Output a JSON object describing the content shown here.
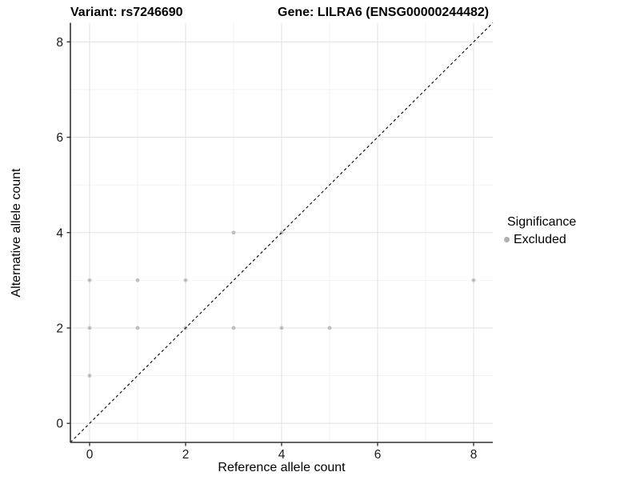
{
  "figure": {
    "title_left": "Variant: rs7246690",
    "title_right": "Gene: LILRA6 (ENSG00000244482)"
  },
  "chart_data": {
    "type": "scatter",
    "title_left": "Variant: rs7246690",
    "title_right": "Gene: LILRA6 (ENSG00000244482)",
    "xlabel": "Reference allele count",
    "ylabel": "Alternative allele count",
    "xlim": [
      -0.4,
      8.4
    ],
    "ylim": [
      -0.4,
      8.4
    ],
    "xticks": [
      0,
      2,
      4,
      6,
      8
    ],
    "yticks": [
      0,
      2,
      4,
      6,
      8
    ],
    "minor_xticks": [
      1,
      3,
      5,
      7
    ],
    "minor_yticks": [
      1,
      3,
      5,
      7
    ],
    "grid": true,
    "legend_position": "right",
    "identity_line": {
      "style": "dashed",
      "color": "#000000",
      "from": [
        -0.4,
        -0.4
      ],
      "to": [
        8.4,
        8.4
      ]
    },
    "series": [
      {
        "name": "Excluded",
        "color": "#bebebe",
        "points": [
          [
            0,
            1
          ],
          [
            0,
            2
          ],
          [
            0,
            3
          ],
          [
            1,
            2
          ],
          [
            1,
            3
          ],
          [
            2,
            2
          ],
          [
            2,
            3
          ],
          [
            3,
            2
          ],
          [
            3,
            4
          ],
          [
            4,
            2
          ],
          [
            4,
            4
          ],
          [
            5,
            2
          ],
          [
            8,
            3
          ]
        ]
      }
    ],
    "legend": {
      "title": "Significance",
      "items": [
        {
          "label": "Excluded",
          "color": "#b0b0b0"
        }
      ]
    },
    "colors": {
      "major_grid": "#e4e4e4",
      "minor_grid": "#f1f1f1",
      "axis_line": "#333333",
      "tick_text": "#1a1a1a",
      "panel_background": "#ffffff"
    }
  }
}
